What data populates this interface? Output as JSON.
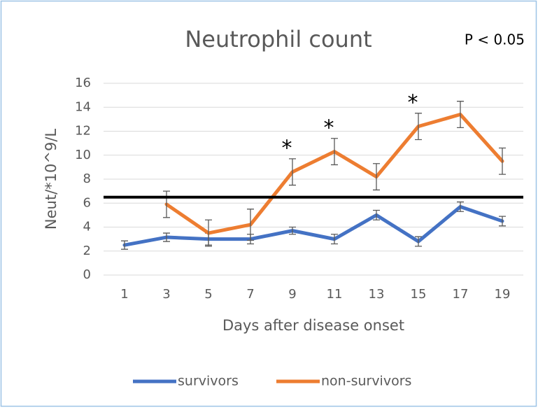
{
  "chart_data": {
    "type": "line",
    "title": "Neutrophil count",
    "annotation": "P < 0.05",
    "x_label": "Days after disease onset",
    "y_label": "Neut/*10^9/L",
    "categories": [
      "1",
      "3",
      "5",
      "7",
      "9",
      "11",
      "13",
      "15",
      "17",
      "19"
    ],
    "series": [
      {
        "name": "survivors",
        "color": "#4472c4",
        "values": [
          2.5,
          3.15,
          3.0,
          3.0,
          3.7,
          3.0,
          5.0,
          2.8,
          5.7,
          4.5
        ],
        "errors": [
          0.35,
          0.35,
          0.5,
          0.4,
          0.3,
          0.4,
          0.4,
          0.4,
          0.4,
          0.4
        ]
      },
      {
        "name": "non-survivors",
        "color": "#ed7d31",
        "values": [
          null,
          5.9,
          3.5,
          4.2,
          8.6,
          10.3,
          8.2,
          12.4,
          13.4,
          9.5
        ],
        "errors": [
          null,
          1.1,
          1.1,
          1.3,
          1.1,
          1.1,
          1.1,
          1.1,
          1.1,
          1.1
        ]
      }
    ],
    "reference_line": 6.5,
    "asterisks": {
      "text": "*",
      "categories": [
        "9",
        "11",
        "15"
      ]
    },
    "ylim": [
      0,
      16
    ],
    "yticks": [
      0,
      2,
      4,
      6,
      8,
      10,
      12,
      14,
      16
    ],
    "grid": true,
    "legend": "bottom"
  }
}
